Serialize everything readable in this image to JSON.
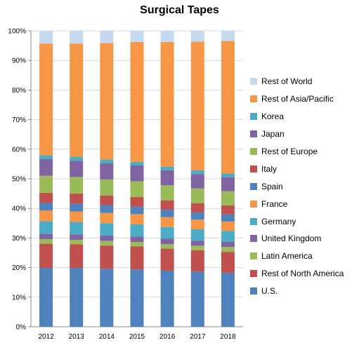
{
  "chart_data": {
    "type": "bar",
    "stacked": true,
    "percent": true,
    "title": "Surgical Tapes",
    "categories": [
      "2012",
      "2013",
      "2014",
      "2015",
      "2016",
      "2017",
      "2018"
    ],
    "y_ticks": [
      "0%",
      "10%",
      "20%",
      "30%",
      "40%",
      "50%",
      "60%",
      "70%",
      "80%",
      "90%",
      "100%"
    ],
    "ylim": [
      0,
      100
    ],
    "grid": true,
    "legend_position": "right",
    "series": [
      {
        "name": "U.S.",
        "color": "#4f81bd",
        "values": [
          19.5,
          19.5,
          19.2,
          19.0,
          18.7,
          18.4,
          18.0
        ]
      },
      {
        "name": "Rest of North America",
        "color": "#c0504d",
        "values": [
          8.0,
          7.8,
          7.7,
          7.6,
          7.3,
          7.1,
          7.0
        ]
      },
      {
        "name": "Latin America",
        "color": "#9bbb59",
        "values": [
          1.5,
          1.5,
          1.5,
          1.5,
          1.5,
          1.5,
          1.6
        ]
      },
      {
        "name": "United Kingdom",
        "color": "#8064a2",
        "values": [
          1.8,
          1.8,
          1.8,
          1.8,
          1.8,
          1.7,
          1.7
        ]
      },
      {
        "name": "Germany",
        "color": "#4bacc6",
        "values": [
          4.2,
          4.1,
          4.1,
          4.0,
          3.9,
          3.8,
          3.7
        ]
      },
      {
        "name": "France",
        "color": "#f79646",
        "values": [
          3.5,
          3.5,
          3.4,
          3.4,
          3.3,
          3.2,
          3.1
        ]
      },
      {
        "name": "Spain",
        "color": "#4f81bd",
        "values": [
          2.6,
          2.6,
          2.6,
          2.5,
          2.5,
          2.4,
          2.4
        ]
      },
      {
        "name": "Italy",
        "color": "#c0504d",
        "values": [
          3.3,
          3.3,
          3.2,
          3.2,
          3.1,
          3.1,
          3.0
        ]
      },
      {
        "name": "Rest of Europe",
        "color": "#9bbb59",
        "values": [
          5.6,
          5.5,
          5.3,
          5.2,
          5.0,
          4.9,
          4.7
        ]
      },
      {
        "name": "Japan",
        "color": "#8064a2",
        "values": [
          5.5,
          5.4,
          5.3,
          5.2,
          5.0,
          4.8,
          4.7
        ]
      },
      {
        "name": "Korea",
        "color": "#4bacc6",
        "values": [
          1.3,
          1.3,
          1.3,
          1.2,
          1.2,
          1.2,
          1.2
        ]
      },
      {
        "name": "Rest of Asia/Pacific",
        "color": "#f79646",
        "values": [
          37.0,
          37.5,
          38.6,
          39.7,
          41.5,
          42.9,
          44.2
        ]
      },
      {
        "name": "Rest of World",
        "color": "#c5d9f1",
        "values": [
          4.2,
          4.2,
          4.0,
          3.7,
          3.7,
          3.6,
          3.4
        ]
      }
    ]
  }
}
